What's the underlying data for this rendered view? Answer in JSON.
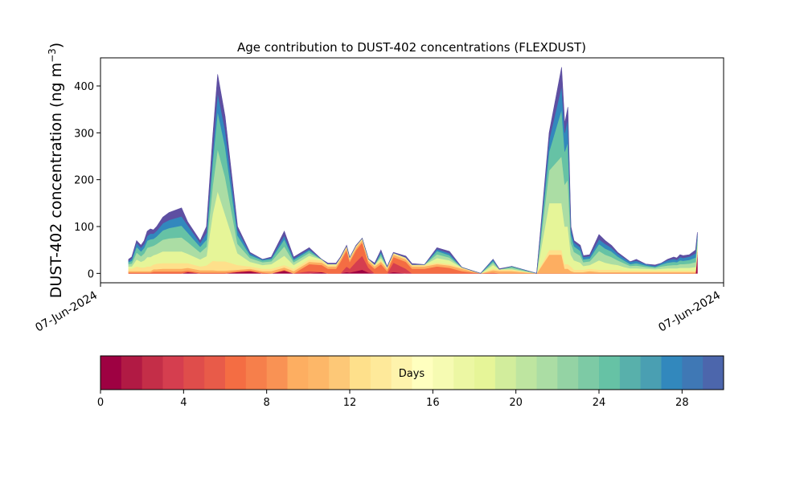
{
  "chart_data": {
    "type": "area",
    "stacked": true,
    "title": "Age contribution to DUST-402 concentrations (FLEXDUST)",
    "ylabel": "DUST-402 concentration (ng m",
    "ylabel_exponent": "−3",
    "ylabel_close": ")",
    "ylim": [
      -20,
      460
    ],
    "xlim": [
      0,
      1
    ],
    "yticks": [
      0,
      100,
      200,
      300,
      400
    ],
    "xtick_labels": [
      "07-Jun-2024",
      "07-Jun-2024"
    ],
    "grid": false,
    "x": [
      0.045,
      0.05,
      0.058,
      0.065,
      0.07,
      0.075,
      0.08,
      0.085,
      0.09,
      0.1,
      0.11,
      0.13,
      0.14,
      0.16,
      0.17,
      0.18,
      0.188,
      0.2,
      0.22,
      0.24,
      0.26,
      0.274,
      0.295,
      0.31,
      0.335,
      0.355,
      0.365,
      0.37,
      0.378,
      0.385,
      0.395,
      0.4,
      0.41,
      0.42,
      0.43,
      0.44,
      0.45,
      0.46,
      0.47,
      0.49,
      0.5,
      0.52,
      0.54,
      0.56,
      0.58,
      0.61,
      0.63,
      0.64,
      0.66,
      0.7,
      0.72,
      0.74,
      0.745,
      0.75,
      0.755,
      0.76,
      0.77,
      0.775,
      0.785,
      0.8,
      0.81,
      0.82,
      0.83,
      0.84,
      0.85,
      0.86,
      0.875,
      0.89,
      0.9,
      0.91,
      0.92,
      0.925,
      0.93,
      0.935,
      0.945,
      0.955,
      0.958
    ],
    "total": [
      30,
      35,
      70,
      60,
      70,
      90,
      95,
      93,
      100,
      120,
      130,
      140,
      110,
      70,
      100,
      290,
      425,
      335,
      100,
      40,
      30,
      35,
      85,
      30,
      55,
      30,
      22,
      22,
      22,
      35,
      60,
      30,
      60,
      70,
      28,
      22,
      50,
      15,
      40,
      38,
      22,
      20,
      50,
      40,
      10,
      0,
      30,
      10,
      15,
      0,
      300,
      440,
      320,
      355,
      100,
      70,
      60,
      38,
      40,
      85,
      70,
      60,
      45,
      35,
      25,
      30,
      20,
      15,
      22,
      30,
      35,
      30,
      40,
      35,
      40,
      50,
      85
    ],
    "bands": {
      "fresh_0_4": [
        0,
        0,
        0,
        0,
        0,
        0,
        0,
        0,
        0,
        0,
        0,
        0,
        0,
        0,
        0,
        0,
        0,
        0,
        0,
        0,
        0,
        0,
        0,
        0,
        0,
        0,
        0,
        0,
        0,
        0,
        0,
        0,
        0,
        0,
        0,
        0,
        0,
        0,
        0,
        0,
        0,
        0,
        0,
        0,
        0,
        0,
        0,
        0,
        0,
        0,
        0,
        0,
        0,
        0,
        0,
        0,
        0,
        0,
        0,
        0,
        0,
        0,
        0,
        0,
        0,
        0,
        0,
        0,
        0,
        0,
        0,
        0,
        0,
        0,
        0,
        0,
        0
      ]
    },
    "series": [
      {
        "name": "",
        "color": "#9e0142",
        "values": [
          0,
          0,
          0,
          0,
          0,
          0,
          0,
          0,
          0,
          0,
          0,
          0,
          3,
          0,
          0,
          0,
          0,
          0,
          3,
          5,
          0,
          0,
          6,
          0,
          0,
          3,
          0,
          0,
          0,
          0,
          3,
          2,
          5,
          8,
          2,
          0,
          0,
          0,
          3,
          0,
          0,
          0,
          0,
          0,
          0,
          0,
          0,
          0,
          0,
          0,
          0,
          0,
          0,
          0,
          0,
          0,
          0,
          0,
          0,
          0,
          0,
          0,
          0,
          0,
          0,
          0,
          0,
          0,
          0,
          0,
          0,
          0,
          0,
          0,
          0,
          0,
          40
        ]
      },
      {
        "name": "",
        "color": "#d53e4f",
        "values": [
          0,
          0,
          0,
          0,
          0,
          0,
          0,
          0,
          0,
          0,
          0,
          0,
          0,
          0,
          0,
          0,
          0,
          0,
          0,
          0,
          0,
          0,
          0,
          0,
          5,
          0,
          0,
          0,
          0,
          0,
          12,
          8,
          20,
          30,
          10,
          0,
          0,
          0,
          20,
          10,
          0,
          0,
          0,
          0,
          0,
          0,
          0,
          0,
          0,
          0,
          0,
          0,
          0,
          0,
          0,
          0,
          0,
          0,
          0,
          0,
          0,
          0,
          0,
          0,
          0,
          0,
          0,
          0,
          0,
          0,
          0,
          0,
          0,
          0,
          0,
          0,
          5
        ]
      },
      {
        "name": "",
        "color": "#f46d43",
        "values": [
          2,
          2,
          2,
          2,
          2,
          2,
          2,
          4,
          4,
          4,
          4,
          4,
          3,
          2,
          2,
          2,
          2,
          2,
          2,
          2,
          2,
          0,
          2,
          0,
          15,
          15,
          10,
          10,
          10,
          25,
          35,
          15,
          25,
          28,
          10,
          10,
          20,
          5,
          12,
          15,
          10,
          10,
          15,
          12,
          5,
          0,
          2,
          0,
          0,
          0,
          0,
          0,
          0,
          0,
          0,
          0,
          0,
          0,
          0,
          0,
          0,
          0,
          0,
          0,
          0,
          0,
          0,
          0,
          0,
          0,
          0,
          0,
          0,
          0,
          0,
          0,
          0
        ]
      },
      {
        "name": "",
        "color": "#fdae61",
        "values": [
          3,
          3,
          3,
          3,
          3,
          3,
          3,
          5,
          5,
          6,
          6,
          6,
          6,
          5,
          5,
          5,
          4,
          4,
          3,
          3,
          3,
          5,
          5,
          5,
          5,
          5,
          5,
          5,
          5,
          5,
          5,
          5,
          5,
          5,
          5,
          5,
          5,
          5,
          5,
          5,
          5,
          5,
          5,
          5,
          5,
          0,
          5,
          5,
          5,
          0,
          40,
          40,
          10,
          10,
          5,
          3,
          3,
          3,
          5,
          3,
          3,
          3,
          3,
          3,
          3,
          3,
          3,
          3,
          3,
          3,
          3,
          3,
          3,
          3,
          3,
          3,
          3
        ]
      },
      {
        "name": "",
        "color": "#fee08b",
        "values": [
          5,
          5,
          10,
          8,
          8,
          10,
          10,
          10,
          12,
          12,
          12,
          12,
          10,
          8,
          10,
          20,
          20,
          20,
          10,
          5,
          5,
          5,
          5,
          5,
          5,
          5,
          3,
          3,
          3,
          3,
          3,
          3,
          3,
          3,
          3,
          3,
          3,
          3,
          3,
          3,
          3,
          3,
          3,
          3,
          3,
          0,
          3,
          3,
          3,
          0,
          10,
          10,
          10,
          10,
          10,
          5,
          5,
          5,
          5,
          5,
          5,
          5,
          5,
          3,
          3,
          3,
          3,
          3,
          3,
          3,
          3,
          3,
          3,
          3,
          3,
          3,
          3
        ]
      },
      {
        "name": "",
        "color": "#e6f598",
        "values": [
          5,
          5,
          15,
          12,
          15,
          20,
          20,
          20,
          20,
          25,
          25,
          25,
          20,
          15,
          20,
          100,
          150,
          100,
          25,
          10,
          8,
          10,
          20,
          8,
          8,
          2,
          2,
          2,
          2,
          1,
          1,
          1,
          1,
          1,
          1,
          1,
          5,
          1,
          1,
          1,
          1,
          1,
          10,
          8,
          0,
          0,
          8,
          1,
          1,
          0,
          100,
          100,
          80,
          80,
          25,
          20,
          15,
          8,
          8,
          20,
          15,
          12,
          10,
          8,
          5,
          5,
          4,
          3,
          4,
          5,
          5,
          5,
          6,
          6,
          6,
          8,
          10
        ]
      },
      {
        "name": "",
        "color": "#abdda4",
        "values": [
          5,
          6,
          15,
          12,
          15,
          20,
          22,
          20,
          22,
          25,
          28,
          30,
          25,
          15,
          20,
          60,
          90,
          80,
          20,
          8,
          6,
          6,
          20,
          6,
          6,
          0,
          0,
          0,
          0,
          0,
          0,
          0,
          0,
          0,
          0,
          0,
          5,
          0,
          0,
          0,
          0,
          0,
          8,
          6,
          0,
          0,
          5,
          0,
          3,
          0,
          70,
          100,
          90,
          100,
          25,
          18,
          15,
          8,
          8,
          20,
          17,
          15,
          10,
          8,
          5,
          6,
          4,
          3,
          5,
          6,
          7,
          7,
          8,
          8,
          9,
          10,
          10
        ]
      },
      {
        "name": "",
        "color": "#66c2a5",
        "values": [
          4,
          6,
          12,
          10,
          12,
          15,
          16,
          15,
          16,
          20,
          22,
          25,
          20,
          12,
          15,
          50,
          80,
          65,
          18,
          6,
          4,
          5,
          15,
          5,
          5,
          0,
          0,
          0,
          0,
          0,
          0,
          0,
          0,
          0,
          0,
          0,
          5,
          0,
          0,
          0,
          0,
          0,
          7,
          5,
          0,
          0,
          4,
          0,
          3,
          0,
          40,
          100,
          70,
          80,
          18,
          12,
          10,
          6,
          6,
          15,
          13,
          12,
          8,
          6,
          4,
          5,
          3,
          2,
          4,
          6,
          7,
          6,
          8,
          7,
          8,
          10,
          8
        ]
      },
      {
        "name": "",
        "color": "#3288bd",
        "values": [
          3,
          5,
          8,
          8,
          8,
          10,
          12,
          11,
          12,
          15,
          17,
          20,
          16,
          8,
          15,
          20,
          40,
          35,
          12,
          4,
          2,
          2,
          8,
          3,
          3,
          0,
          0,
          0,
          0,
          0,
          0,
          0,
          0,
          0,
          0,
          0,
          4,
          0,
          0,
          0,
          0,
          0,
          4,
          4,
          0,
          0,
          3,
          0,
          0,
          0,
          25,
          50,
          40,
          50,
          12,
          8,
          8,
          5,
          5,
          10,
          10,
          8,
          6,
          5,
          5,
          5,
          3,
          2,
          3,
          5,
          6,
          5,
          7,
          6,
          7,
          9,
          5
        ]
      },
      {
        "name": "",
        "color": "#5e4fa2",
        "values": [
          3,
          3,
          5,
          5,
          7,
          10,
          10,
          8,
          9,
          13,
          16,
          18,
          7,
          5,
          13,
          33,
          39,
          29,
          7,
          2,
          0,
          2,
          9,
          3,
          3,
          0,
          2,
          2,
          2,
          1,
          1,
          0,
          1,
          0,
          0,
          3,
          3,
          1,
          1,
          3,
          2,
          0,
          3,
          4,
          0,
          0,
          0,
          1,
          0,
          0,
          15,
          40,
          20,
          25,
          5,
          4,
          4,
          3,
          3,
          10,
          7,
          5,
          3,
          2,
          0,
          3,
          0,
          2,
          0,
          2,
          4,
          4,
          5,
          5,
          4,
          7,
          4
        ]
      }
    ],
    "colorbar": {
      "label": "Days",
      "ticks": [
        0,
        4,
        8,
        12,
        16,
        20,
        24,
        28
      ],
      "range": [
        0,
        30
      ],
      "levels": 30,
      "colormap": "Spectral",
      "colors": [
        "#9e0142",
        "#b11a44",
        "#c42e48",
        "#d53e4f",
        "#df4d4b",
        "#e85b49",
        "#f46d43",
        "#f67f4b",
        "#f99254",
        "#fdae61",
        "#fdb768",
        "#fdc877",
        "#fee08b",
        "#fee99a",
        "#fef3ac",
        "#ffffbf",
        "#f6fbb2",
        "#ecf7a3",
        "#e6f598",
        "#d2ed9c",
        "#bee5a0",
        "#abdda4",
        "#94d3a4",
        "#7dcaa5",
        "#66c2a5",
        "#58b0ab",
        "#4a9fb2",
        "#3288bd",
        "#3f78b5",
        "#4c66ac"
      ]
    }
  }
}
